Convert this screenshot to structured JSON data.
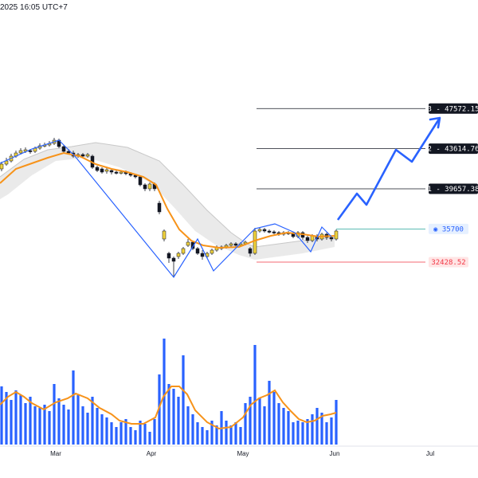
{
  "header": {
    "timestamp": "2025 16:05 UTC+7"
  },
  "chart_data": {
    "type": "candlestick",
    "x_axis": {
      "labels": [
        "Mar",
        "Apr",
        "May",
        "Jun",
        "Jul"
      ]
    },
    "price_levels": [
      {
        "name": "target-3",
        "label": "3 - 47572.15",
        "value": 47572.15,
        "color": "#131722",
        "text_color": "#ffffff"
      },
      {
        "name": "target-2",
        "label": "2 - 43614.76",
        "value": 43614.76,
        "color": "#131722",
        "text_color": "#ffffff"
      },
      {
        "name": "target-1",
        "label": "1 - 39657.38",
        "value": 39657.38,
        "color": "#131722",
        "text_color": "#ffffff"
      },
      {
        "name": "entry",
        "label": "35700",
        "value": 35700,
        "color": "#e6f0ff",
        "text_color": "#2962ff",
        "line_color": "#26a69a"
      },
      {
        "name": "stop",
        "label": "32428.52",
        "value": 32428.52,
        "color": "#ffe5e5",
        "text_color": "#f23645",
        "line_color": "#f23645"
      }
    ],
    "colors": {
      "bull": "#f0d23c",
      "bear": "#131722",
      "ma": "#f7931a",
      "zigzag": "#2962ff",
      "band": "#d9d9d9",
      "volume": "#2962ff"
    }
  }
}
